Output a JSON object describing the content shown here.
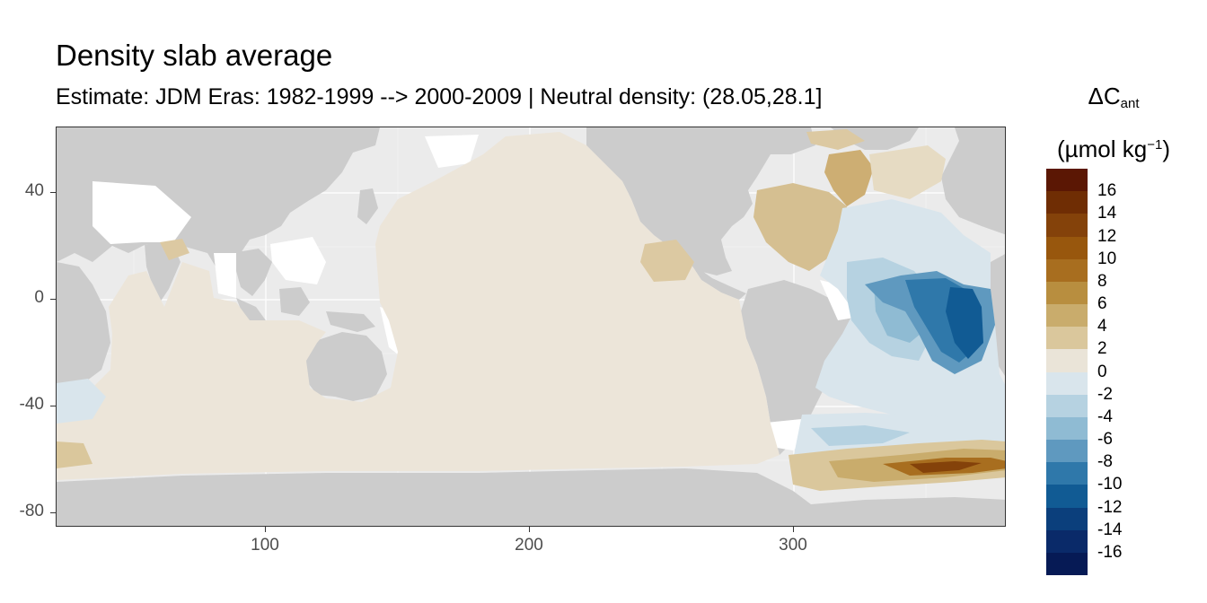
{
  "title": "Density slab average",
  "subtitle": "Estimate: JDM Eras: 1982-1999 --> 2000-2009 | Neutral density: (28.05,28.1]",
  "y_axis": {
    "ticks": [
      "40",
      "0",
      "-40",
      "-80"
    ],
    "tick_values": [
      40,
      0,
      -40,
      -80
    ],
    "range": [
      -84,
      64
    ]
  },
  "x_axis": {
    "ticks": [
      "100",
      "200",
      "300"
    ],
    "tick_values": [
      100,
      200,
      300
    ],
    "range": [
      20,
      380
    ]
  },
  "legend": {
    "title_main": "ΔC",
    "title_sub": "ant",
    "unit_prefix": "(µmol kg",
    "unit_sup": "−1",
    "unit_suffix": ")",
    "labels": [
      "16",
      "14",
      "12",
      "10",
      "8",
      "6",
      "4",
      "2",
      "0",
      "-2",
      "-4",
      "-6",
      "-8",
      "-10",
      "-12",
      "-14",
      "-16"
    ],
    "colors": [
      "#5b1704",
      "#6f2d04",
      "#84420a",
      "#98570d",
      "#a86e1f",
      "#b88e3f",
      "#c9ac6c",
      "#dac79c",
      "#eae4d8",
      "#d9e5ec",
      "#b6d2e1",
      "#8fbbd3",
      "#5f99bf",
      "#2f78aa",
      "#115b94",
      "#0b3f7c",
      "#0a2a69",
      "#061a55"
    ]
  },
  "colors": {
    "land": "#cccccc",
    "panel": "#ebebeb",
    "no_data": "#ffffff",
    "grid": "#ffffff"
  },
  "map_data": {
    "variable": "ΔC_ant",
    "projection": "lon-lat",
    "regions": [
      {
        "name": "pacific-indian-bulk",
        "value": 1
      },
      {
        "name": "north-atlantic-west",
        "value": 5
      },
      {
        "name": "labrador-sea",
        "value": 6
      },
      {
        "name": "east-pacific",
        "value": 4
      },
      {
        "name": "tropical-atlantic",
        "value": -3
      },
      {
        "name": "south-atlantic-west",
        "value": -6
      },
      {
        "name": "south-atlantic-east",
        "value": -12
      },
      {
        "name": "weddell-sea",
        "value": 12
      },
      {
        "name": "southern-ocean-atlantic",
        "value": -1
      }
    ]
  }
}
